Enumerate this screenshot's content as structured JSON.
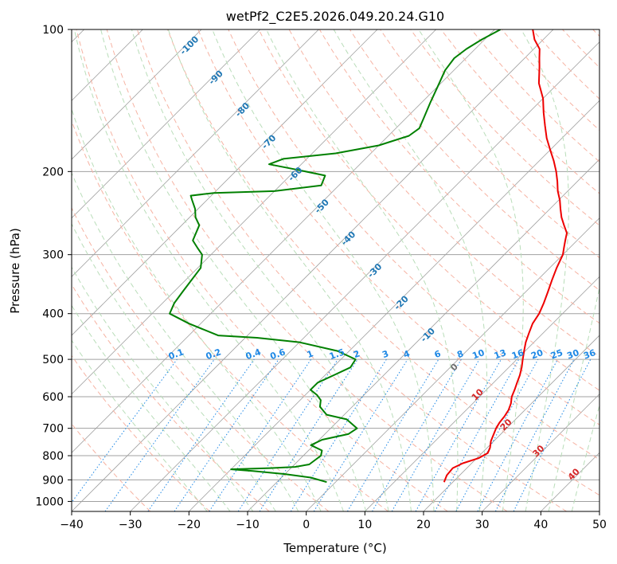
{
  "chart_data": {
    "type": "line",
    "title": "wetPf2_C2E5.2026.049.20.24.G10",
    "xlabel": "Temperature (°C)",
    "ylabel": "Pressure (hPa)",
    "xlim": [
      -40,
      50
    ],
    "ylim": [
      1050,
      100
    ],
    "y_scale": "log",
    "grid": true,
    "x_ticks": [
      -40,
      -30,
      -20,
      -10,
      0,
      10,
      20,
      30,
      40,
      50
    ],
    "y_ticks": [
      100,
      200,
      300,
      400,
      500,
      600,
      700,
      800,
      900,
      1000
    ],
    "colors": {
      "temperature": "#ee0000",
      "dewpoint": "#008000",
      "isotherm": "#a0a0a0",
      "dry_adiabat": "#f6b3a3",
      "moist_adiabat": "#b9ddb9",
      "mixing_ratio": "#1e88e5",
      "isotherm_label": "#1f77b4",
      "dry_adiabat_label": "#d62728"
    },
    "series": [
      {
        "key": "temperature",
        "points": [
          [
            18.5,
            910
          ],
          [
            17.8,
            880
          ],
          [
            17.6,
            850
          ],
          [
            18.5,
            830
          ],
          [
            20.3,
            810
          ],
          [
            21.0,
            790
          ],
          [
            20.5,
            770
          ],
          [
            19.5,
            745
          ],
          [
            18.8,
            720
          ],
          [
            18.2,
            700
          ],
          [
            17.8,
            680
          ],
          [
            17.6,
            660
          ],
          [
            17.2,
            640
          ],
          [
            16.5,
            620
          ],
          [
            15.5,
            600
          ],
          [
            14.8,
            580
          ],
          [
            14.0,
            560
          ],
          [
            13.2,
            540
          ],
          [
            12.2,
            520
          ],
          [
            11.0,
            500
          ],
          [
            9.8,
            480
          ],
          [
            8.6,
            460
          ],
          [
            7.6,
            440
          ],
          [
            6.6,
            420
          ],
          [
            6.0,
            400
          ],
          [
            5.0,
            380
          ],
          [
            3.8,
            360
          ],
          [
            2.5,
            340
          ],
          [
            1.2,
            320
          ],
          [
            0.0,
            300
          ],
          [
            -1.0,
            290
          ],
          [
            -2.0,
            280
          ],
          [
            -3.0,
            270
          ],
          [
            -4.8,
            260
          ],
          [
            -6.6,
            250
          ],
          [
            -8.2,
            240
          ],
          [
            -9.8,
            230
          ],
          [
            -11.7,
            220
          ],
          [
            -13.4,
            210
          ],
          [
            -15.3,
            200
          ],
          [
            -17.5,
            190
          ],
          [
            -20.0,
            180
          ],
          [
            -22.6,
            170
          ],
          [
            -25.0,
            160
          ],
          [
            -27.5,
            150
          ],
          [
            -30.0,
            140
          ],
          [
            -33.3,
            130
          ],
          [
            -36.0,
            120
          ],
          [
            -37.5,
            115
          ],
          [
            -39.0,
            110
          ],
          [
            -41.5,
            105
          ],
          [
            -43.5,
            100
          ]
        ]
      },
      {
        "key": "dewpoint",
        "points": [
          [
            -1.5,
            910
          ],
          [
            -5.0,
            890
          ],
          [
            -10.0,
            875
          ],
          [
            -16.0,
            862
          ],
          [
            -20.0,
            855
          ],
          [
            -13.5,
            850
          ],
          [
            -9.5,
            845
          ],
          [
            -7.5,
            835
          ],
          [
            -7.0,
            800
          ],
          [
            -7.7,
            780
          ],
          [
            -10.5,
            760
          ],
          [
            -9.5,
            740
          ],
          [
            -6.0,
            720
          ],
          [
            -5.5,
            700
          ],
          [
            -8.8,
            670
          ],
          [
            -13.0,
            655
          ],
          [
            -15.5,
            630
          ],
          [
            -16.5,
            610
          ],
          [
            -18.0,
            595
          ],
          [
            -20.0,
            580
          ],
          [
            -20.0,
            560
          ],
          [
            -18.5,
            540
          ],
          [
            -17.0,
            520
          ],
          [
            -17.5,
            500
          ],
          [
            -22.0,
            480
          ],
          [
            -30.0,
            460
          ],
          [
            -38.0,
            450
          ],
          [
            -45.0,
            445
          ],
          [
            -52.0,
            420
          ],
          [
            -57.0,
            400
          ],
          [
            -58.0,
            380
          ],
          [
            -58.5,
            360
          ],
          [
            -59.5,
            320
          ],
          [
            -61.5,
            300
          ],
          [
            -63.5,
            290
          ],
          [
            -65.5,
            280
          ],
          [
            -67.0,
            260
          ],
          [
            -69.0,
            250
          ],
          [
            -70.5,
            240
          ],
          [
            -72.5,
            230
          ],
          [
            -73.5,
            225
          ],
          [
            -70.0,
            222
          ],
          [
            -60.0,
            220
          ],
          [
            -53.0,
            214
          ],
          [
            -54.0,
            204
          ],
          [
            -60.0,
            198
          ],
          [
            -65.5,
            193
          ],
          [
            -64.0,
            188
          ],
          [
            -56.0,
            183
          ],
          [
            -50.0,
            176
          ],
          [
            -46.5,
            168
          ],
          [
            -46.0,
            162
          ],
          [
            -47.0,
            154
          ],
          [
            -48.5,
            143
          ],
          [
            -50.0,
            132
          ],
          [
            -51.5,
            122
          ],
          [
            -52.0,
            115
          ],
          [
            -51.5,
            110
          ],
          [
            -50.5,
            105
          ],
          [
            -49.0,
            100
          ]
        ]
      }
    ],
    "isotherm_labels": [
      "-100",
      "-90",
      "-80",
      "-70",
      "-60",
      "-50",
      "-40",
      "-30",
      "-20",
      "-10",
      "0"
    ],
    "dry_adiabat_labels": [
      "10",
      "20",
      "30",
      "40"
    ],
    "mixing_ratio_labels": [
      "0.1",
      "0.2",
      "0.4",
      "0.6",
      "1",
      "1.5",
      "2",
      "3",
      "4",
      "6",
      "8",
      "10",
      "13",
      "16",
      "20",
      "25",
      "30",
      "36"
    ]
  }
}
